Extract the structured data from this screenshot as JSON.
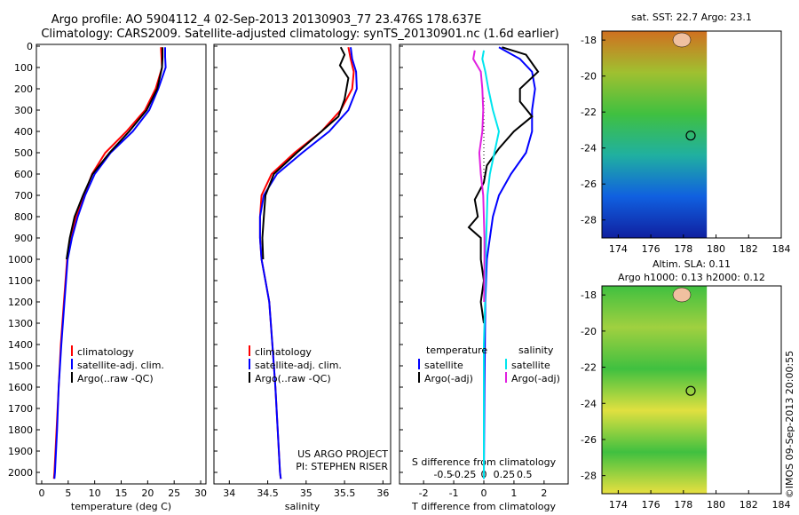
{
  "title_line1": "Argo profile: AO 5904112_4 02-Sep-2013 20130903_77 23.476S 178.637E",
  "title_line2": "Climatology: CARS2009. Satellite-adjusted climatology: synTS_20130901.nc (1.6d earlier)",
  "colors": {
    "climatology": "#ff0000",
    "satellite": "#0000ff",
    "argo": "#000000",
    "sal_satellite": "#00e5ee",
    "sal_argo": "#e020e0"
  },
  "credit": "©IMOS 09-Sep-2013 20:00:55",
  "chart_data": [
    {
      "type": "line",
      "xlabel": "temperature (deg C)",
      "ylim": [
        2100,
        0
      ],
      "xlim": [
        -1,
        31
      ],
      "xticks": [
        "0",
        "5",
        "10",
        "15",
        "20",
        "25",
        "30"
      ],
      "yticks": [
        "0",
        "100",
        "200",
        "300",
        "400",
        "500",
        "600",
        "700",
        "800",
        "900",
        "1000",
        "1100",
        "1200",
        "1300",
        "1400",
        "1500",
        "1600",
        "1700",
        "1800",
        "1900",
        "2000"
      ],
      "legend": [
        "climatology",
        "satellite-adj. clim.",
        "Argo(..raw -QC)"
      ],
      "series": [
        {
          "name": "climatology",
          "color_key": "climatology",
          "points": [
            [
              22.5,
              5
            ],
            [
              22.6,
              50
            ],
            [
              22.7,
              100
            ],
            [
              21.5,
              200
            ],
            [
              19.5,
              300
            ],
            [
              16,
              400
            ],
            [
              12,
              500
            ],
            [
              9.5,
              600
            ],
            [
              8,
              700
            ],
            [
              6.5,
              800
            ],
            [
              5.5,
              900
            ],
            [
              4.8,
              1000
            ],
            [
              4.2,
              1200
            ],
            [
              3.6,
              1400
            ],
            [
              3.2,
              1600
            ],
            [
              2.8,
              1800
            ],
            [
              2.4,
              2000
            ],
            [
              2.3,
              2030
            ]
          ]
        },
        {
          "name": "satellite-adj. clim.",
          "color_key": "satellite",
          "points": [
            [
              23.3,
              5
            ],
            [
              23.3,
              50
            ],
            [
              23.4,
              100
            ],
            [
              22,
              200
            ],
            [
              20.3,
              300
            ],
            [
              17.2,
              400
            ],
            [
              13,
              500
            ],
            [
              10,
              600
            ],
            [
              8.2,
              700
            ],
            [
              6.8,
              800
            ],
            [
              5.7,
              900
            ],
            [
              4.9,
              1000
            ],
            [
              4.3,
              1200
            ],
            [
              3.7,
              1400
            ],
            [
              3.2,
              1600
            ],
            [
              2.9,
              1800
            ],
            [
              2.5,
              2000
            ],
            [
              2.4,
              2030
            ]
          ]
        },
        {
          "name": "Argo(..raw -QC)",
          "color_key": "argo",
          "points": [
            [
              22.8,
              5
            ],
            [
              22.8,
              50
            ],
            [
              22.7,
              100
            ],
            [
              21.8,
              200
            ],
            [
              19.8,
              300
            ],
            [
              16.5,
              400
            ],
            [
              12.8,
              500
            ],
            [
              9.6,
              600
            ],
            [
              7.8,
              700
            ],
            [
              6.2,
              800
            ],
            [
              5.3,
              900
            ],
            [
              4.7,
              1000
            ]
          ]
        }
      ]
    },
    {
      "type": "line",
      "xlabel": "salinity",
      "ylim": [
        2100,
        0
      ],
      "xlim": [
        33.8,
        36.1
      ],
      "xticks": [
        "34",
        "34.5",
        "35",
        "35.5",
        "36"
      ],
      "legend": [
        "climatology",
        "satellite-adj. clim.",
        "Argo(..raw -QC)"
      ],
      "annotation": [
        "US ARGO PROJECT",
        "PI: STEPHEN RISER"
      ],
      "series": [
        {
          "name": "climatology",
          "color_key": "climatology",
          "points": [
            [
              35.55,
              5
            ],
            [
              35.58,
              60
            ],
            [
              35.62,
              120
            ],
            [
              35.6,
              200
            ],
            [
              35.45,
              300
            ],
            [
              35.2,
              400
            ],
            [
              34.85,
              500
            ],
            [
              34.55,
              600
            ],
            [
              34.42,
              700
            ],
            [
              34.4,
              800
            ],
            [
              34.4,
              900
            ],
            [
              34.42,
              1000
            ],
            [
              34.47,
              1100
            ],
            [
              34.52,
              1200
            ],
            [
              34.56,
              1400
            ],
            [
              34.6,
              1600
            ],
            [
              34.63,
              1800
            ],
            [
              34.66,
              2000
            ],
            [
              34.67,
              2030
            ]
          ]
        },
        {
          "name": "satellite-adj. clim.",
          "color_key": "satellite",
          "points": [
            [
              35.58,
              5
            ],
            [
              35.6,
              60
            ],
            [
              35.65,
              120
            ],
            [
              35.66,
              200
            ],
            [
              35.55,
              300
            ],
            [
              35.3,
              400
            ],
            [
              34.95,
              500
            ],
            [
              34.62,
              600
            ],
            [
              34.45,
              700
            ],
            [
              34.4,
              800
            ],
            [
              34.4,
              900
            ],
            [
              34.42,
              1000
            ],
            [
              34.47,
              1100
            ],
            [
              34.52,
              1200
            ],
            [
              34.56,
              1400
            ],
            [
              34.6,
              1600
            ],
            [
              34.63,
              1800
            ],
            [
              34.66,
              2000
            ],
            [
              34.67,
              2030
            ]
          ]
        },
        {
          "name": "Argo(..raw -QC)",
          "color_key": "argo",
          "points": [
            [
              35.45,
              5
            ],
            [
              35.5,
              40
            ],
            [
              35.44,
              90
            ],
            [
              35.55,
              150
            ],
            [
              35.5,
              250
            ],
            [
              35.42,
              330
            ],
            [
              35.2,
              400
            ],
            [
              34.88,
              500
            ],
            [
              34.58,
              600
            ],
            [
              34.47,
              700
            ],
            [
              34.45,
              800
            ],
            [
              34.43,
              900
            ],
            [
              34.44,
              1000
            ]
          ]
        }
      ]
    },
    {
      "type": "line",
      "xlabel": "T difference from climatology",
      "xlabel_top": "S difference from climatology",
      "ylim": [
        2100,
        0
      ],
      "xlim": [
        -2.8,
        2.8
      ],
      "xticks": [
        "-2",
        "-1",
        "0",
        "1",
        "2"
      ],
      "xticks_s": [
        "-0.5",
        "-0.25",
        "0",
        "0.25",
        "0.5"
      ],
      "legend_titles": [
        "temperature",
        "salinity"
      ],
      "legend": [
        "satellite",
        "Argo(-adj)",
        "satellite",
        "Argo(-adj)"
      ],
      "series": [
        {
          "name": "satellite",
          "color_key": "satellite",
          "points": [
            [
              0.5,
              5
            ],
            [
              1.2,
              60
            ],
            [
              1.6,
              120
            ],
            [
              1.7,
              200
            ],
            [
              1.6,
              300
            ],
            [
              1.6,
              400
            ],
            [
              1.4,
              500
            ],
            [
              0.9,
              600
            ],
            [
              0.5,
              700
            ],
            [
              0.3,
              800
            ],
            [
              0.2,
              900
            ],
            [
              0.1,
              1000
            ],
            [
              0.05,
              1200
            ],
            [
              0.02,
              1600
            ],
            [
              0,
              2030
            ]
          ]
        },
        {
          "name": "Argo(-adj)",
          "color_key": "argo",
          "points": [
            [
              0.6,
              5
            ],
            [
              1.4,
              40
            ],
            [
              1.8,
              120
            ],
            [
              1.2,
              200
            ],
            [
              1.2,
              260
            ],
            [
              1.6,
              330
            ],
            [
              1.0,
              400
            ],
            [
              0.5,
              480
            ],
            [
              0.1,
              560
            ],
            [
              0,
              640
            ],
            [
              -0.3,
              720
            ],
            [
              -0.2,
              800
            ],
            [
              -0.5,
              850
            ],
            [
              -0.1,
              900
            ],
            [
              -0.1,
              1000
            ],
            [
              0,
              1100
            ],
            [
              -0.1,
              1200
            ],
            [
              0,
              1300
            ]
          ]
        },
        {
          "name": "satellite",
          "color_key": "sal_satellite",
          "points": [
            [
              0,
              20
            ],
            [
              -0.05,
              60
            ],
            [
              0.05,
              120
            ],
            [
              0.15,
              200
            ],
            [
              0.3,
              300
            ],
            [
              0.5,
              400
            ],
            [
              0.35,
              500
            ],
            [
              0.2,
              600
            ],
            [
              0.12,
              700
            ],
            [
              0.1,
              800
            ],
            [
              0.08,
              900
            ],
            [
              0.06,
              1000
            ],
            [
              0.04,
              1200
            ],
            [
              0,
              1400
            ],
            [
              0,
              2030
            ]
          ]
        },
        {
          "name": "Argo(-adj)",
          "color_key": "sal_argo",
          "points": [
            [
              -0.3,
              20
            ],
            [
              -0.35,
              60
            ],
            [
              -0.1,
              120
            ],
            [
              -0.05,
              200
            ],
            [
              -0.02,
              300
            ],
            [
              -0.05,
              400
            ],
            [
              -0.15,
              500
            ],
            [
              -0.1,
              600
            ],
            [
              -0.02,
              700
            ],
            [
              0,
              800
            ],
            [
              0.02,
              900
            ],
            [
              0.02,
              1000
            ],
            [
              0.01,
              1200
            ]
          ]
        }
      ]
    }
  ],
  "maps": [
    {
      "title": "sat. SST: 22.7  Argo: 23.1",
      "title2": "",
      "xticks": [
        "174",
        "176",
        "178",
        "180",
        "182",
        "184"
      ],
      "yticks": [
        "-18",
        "-20",
        "-22",
        "-24",
        "-26",
        "-28"
      ],
      "gradient": [
        "#d07020",
        "#a0c030",
        "#40c040",
        "#20b0a0",
        "#1060e0",
        "#1020a0"
      ]
    },
    {
      "title": "Altim. SLA: 0.11",
      "title2": "Argo h1000: 0.13  h2000: 0.12",
      "xticks": [
        "174",
        "176",
        "178",
        "180",
        "182",
        "184"
      ],
      "yticks": [
        "-18",
        "-20",
        "-22",
        "-24",
        "-26",
        "-28"
      ],
      "gradient": [
        "#40c040",
        "#a0d040",
        "#40c040",
        "#e0e040",
        "#40c040",
        "#e8e040"
      ]
    }
  ]
}
